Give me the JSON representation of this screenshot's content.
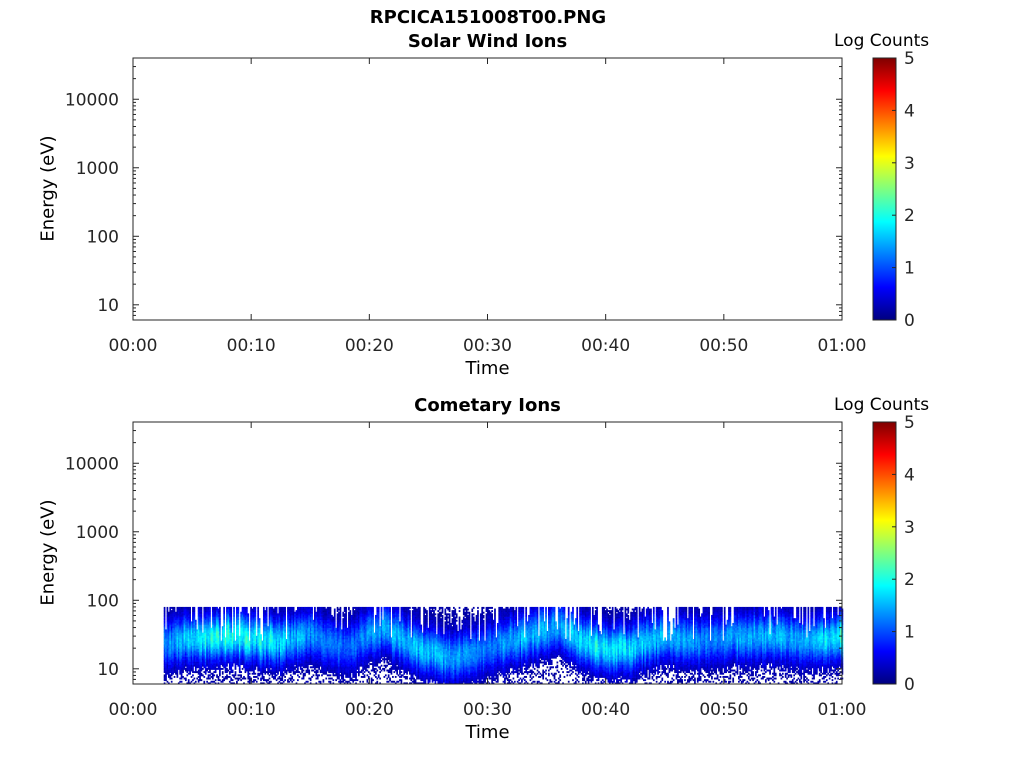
{
  "figure": {
    "title": "RPCICA151008T00.PNG"
  },
  "colors": {
    "jet": [
      "#00007f",
      "#0000ff",
      "#007fff",
      "#00ffff",
      "#7fff7f",
      "#ffff00",
      "#ff7f00",
      "#ff0000",
      "#7f0000"
    ]
  },
  "chart_data": [
    {
      "type": "heatmap",
      "title": "Solar Wind Ions",
      "xlabel": "Time",
      "ylabel": "Energy (eV)",
      "x_ticks": [
        "00:00",
        "00:10",
        "00:20",
        "00:30",
        "00:40",
        "00:50",
        "01:00"
      ],
      "xlim": [
        "00:00",
        "01:00"
      ],
      "y_scale": "log",
      "y_ticks": [
        "10",
        "100",
        "1000",
        "10000"
      ],
      "ylim": [
        6,
        40000
      ],
      "colorbar": {
        "label": "Log Counts",
        "ticks": [
          "0",
          "1",
          "2",
          "3",
          "4",
          "5"
        ],
        "range": [
          0,
          5
        ]
      },
      "data": []
    },
    {
      "type": "heatmap",
      "title": "Cometary Ions",
      "xlabel": "Time",
      "ylabel": "Energy (eV)",
      "x_ticks": [
        "00:00",
        "00:10",
        "00:20",
        "00:30",
        "00:40",
        "00:50",
        "01:00"
      ],
      "xlim": [
        "00:00",
        "01:00"
      ],
      "y_scale": "log",
      "y_ticks": [
        "10",
        "100",
        "1000",
        "10000"
      ],
      "ylim": [
        6,
        40000
      ],
      "colorbar": {
        "label": "Log Counts",
        "ticks": [
          "0",
          "1",
          "2",
          "3",
          "4",
          "5"
        ],
        "range": [
          0,
          5
        ]
      },
      "data_extent": {
        "time_start_min": 2.6,
        "time_end_min": 60,
        "energy_min_eV": 6,
        "energy_max_eV": 80
      },
      "time_minutes": [
        3,
        6,
        9,
        12,
        15,
        18,
        21,
        24,
        27,
        30,
        33,
        36,
        39,
        42,
        45,
        48,
        51,
        54,
        57,
        60
      ],
      "peak_energy_eV": [
        25,
        30,
        30,
        25,
        30,
        20,
        40,
        20,
        15,
        20,
        30,
        40,
        20,
        20,
        30,
        25,
        30,
        30,
        25,
        30
      ],
      "peak_log_counts": [
        1.3,
        1.8,
        1.9,
        1.7,
        1.2,
        1.0,
        1.3,
        1.5,
        1.4,
        1.1,
        1.5,
        1.3,
        1.8,
        1.6,
        1.5,
        1.2,
        1.3,
        1.4,
        1.4,
        1.9
      ]
    }
  ]
}
